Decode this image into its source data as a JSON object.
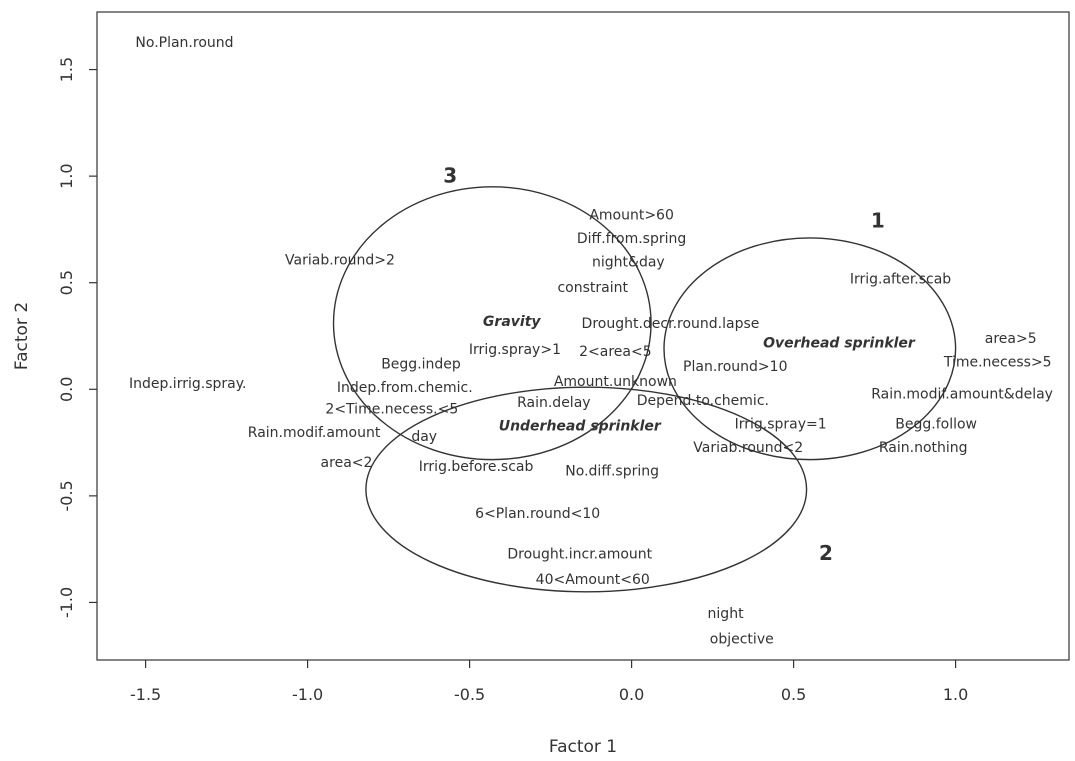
{
  "chart_data": {
    "type": "scatter",
    "xlabel": "Factor 1",
    "ylabel": "Factor 2",
    "xlim": [
      -1.65,
      1.35
    ],
    "ylim": [
      -1.27,
      1.77
    ],
    "xticks": [
      {
        "value": -1.5,
        "label": "-1.5"
      },
      {
        "value": -1.0,
        "label": "-1.0"
      },
      {
        "value": -0.5,
        "label": "-0.5"
      },
      {
        "value": 0.0,
        "label": "0.0"
      },
      {
        "value": 0.5,
        "label": "0.5"
      },
      {
        "value": 1.0,
        "label": "1.0"
      }
    ],
    "yticks": [
      {
        "value": 1.5,
        "label": "1.5"
      },
      {
        "value": 1.0,
        "label": "1.0"
      },
      {
        "value": 0.5,
        "label": "0.5"
      },
      {
        "value": 0.0,
        "label": "0.0"
      },
      {
        "value": -0.5,
        "label": "-0.5"
      },
      {
        "value": -1.0,
        "label": "-1.0"
      }
    ],
    "points": [
      {
        "label": "No.Plan.round",
        "x": -1.38,
        "y": 1.63
      },
      {
        "label": "Amount>60",
        "x": 0.0,
        "y": 0.82
      },
      {
        "label": "Diff.from.spring",
        "x": 0.0,
        "y": 0.71
      },
      {
        "label": "night&day",
        "x": -0.01,
        "y": 0.6
      },
      {
        "label": "constraint",
        "x": -0.12,
        "y": 0.48
      },
      {
        "label": "Variab.round>2",
        "x": -0.9,
        "y": 0.61
      },
      {
        "label": "Irrig.after.scab",
        "x": 0.83,
        "y": 0.52
      },
      {
        "label": "Gravity",
        "x": -0.37,
        "y": 0.32,
        "bold": true
      },
      {
        "label": "Drought.decr.round.lapse",
        "x": 0.12,
        "y": 0.31
      },
      {
        "label": "Overhead sprinkler",
        "x": 0.64,
        "y": 0.22,
        "bold": true
      },
      {
        "label": "Irrig.spray>1",
        "x": -0.36,
        "y": 0.19
      },
      {
        "label": "2<area<5",
        "x": -0.05,
        "y": 0.18
      },
      {
        "label": "area>5",
        "x": 1.17,
        "y": 0.24
      },
      {
        "label": "Begg.indep",
        "x": -0.65,
        "y": 0.12
      },
      {
        "label": "Plan.round>10",
        "x": 0.32,
        "y": 0.11
      },
      {
        "label": "Time.necess>5",
        "x": 1.13,
        "y": 0.13
      },
      {
        "label": "Indep.irrig.spray.",
        "x": -1.37,
        "y": 0.03
      },
      {
        "label": "Indep.from.chemic.",
        "x": -0.7,
        "y": 0.01
      },
      {
        "label": "Amount.unknown",
        "x": -0.05,
        "y": 0.04
      },
      {
        "label": "Rain.modif.amount&delay",
        "x": 1.02,
        "y": -0.02
      },
      {
        "label": "Rain.delay",
        "x": -0.24,
        "y": -0.06
      },
      {
        "label": "Depend.to.chemic.",
        "x": 0.22,
        "y": -0.05
      },
      {
        "label": "2<Time.necess.<5",
        "x": -0.74,
        "y": -0.09
      },
      {
        "label": "Irrig.spray=1",
        "x": 0.46,
        "y": -0.16
      },
      {
        "label": "Underhead sprinkler",
        "x": -0.16,
        "y": -0.17,
        "bold": true
      },
      {
        "label": "Begg.follow",
        "x": 0.94,
        "y": -0.16
      },
      {
        "label": "Rain.modif.amount",
        "x": -0.98,
        "y": -0.2
      },
      {
        "label": "day",
        "x": -0.64,
        "y": -0.22
      },
      {
        "label": "Variab.round<2",
        "x": 0.36,
        "y": -0.27
      },
      {
        "label": "Rain.nothing",
        "x": 0.9,
        "y": -0.27
      },
      {
        "label": "area<2",
        "x": -0.88,
        "y": -0.34
      },
      {
        "label": "Irrig.before.scab",
        "x": -0.48,
        "y": -0.36
      },
      {
        "label": "No.diff.spring",
        "x": -0.06,
        "y": -0.38
      },
      {
        "label": "6<Plan.round<10",
        "x": -0.29,
        "y": -0.58
      },
      {
        "label": "Drought.incr.amount",
        "x": -0.16,
        "y": -0.77
      },
      {
        "label": "40<Amount<60",
        "x": -0.12,
        "y": -0.89
      },
      {
        "label": "night",
        "x": 0.29,
        "y": -1.05
      },
      {
        "label": "objective",
        "x": 0.34,
        "y": -1.17
      }
    ],
    "clusters": [
      {
        "label": "1",
        "center": [
          0.55,
          0.19
        ],
        "radius": [
          0.45,
          0.52
        ],
        "label_pos": [
          0.76,
          0.76
        ]
      },
      {
        "label": "2",
        "center": [
          -0.14,
          -0.47
        ],
        "radius": [
          0.68,
          0.48
        ],
        "label_pos": [
          0.6,
          -0.8
        ]
      },
      {
        "label": "3",
        "center": [
          -0.43,
          0.31
        ],
        "radius": [
          0.49,
          0.64
        ],
        "label_pos": [
          -0.56,
          0.97
        ]
      }
    ]
  }
}
